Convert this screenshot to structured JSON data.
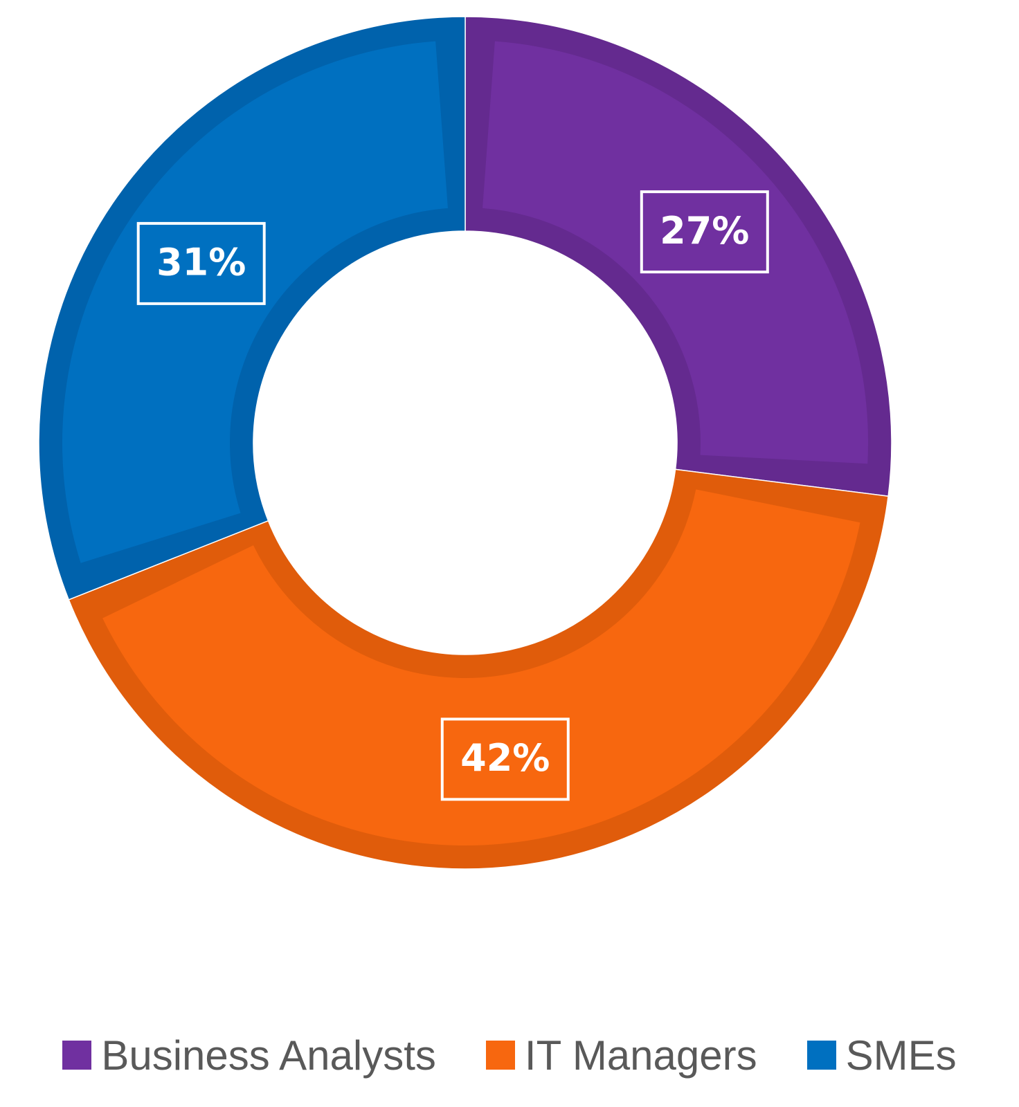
{
  "chart_data": {
    "type": "pie",
    "variant": "donut",
    "title": "",
    "start_angle_deg": 0,
    "direction": "clockwise",
    "data_label_style": "white text in white-outlined box",
    "series": [
      {
        "name": "Business Analysts",
        "value": 27,
        "label": "27%",
        "color": "#7030A0",
        "edge_color": "#642A8F"
      },
      {
        "name": "IT Managers",
        "value": 42,
        "label": "42%",
        "color": "#F7670F",
        "edge_color": "#E05C0B"
      },
      {
        "name": "SMEs",
        "value": 31,
        "label": "31%",
        "color": "#0070C0",
        "edge_color": "#0062AC"
      }
    ],
    "legend": {
      "position": "bottom"
    }
  }
}
